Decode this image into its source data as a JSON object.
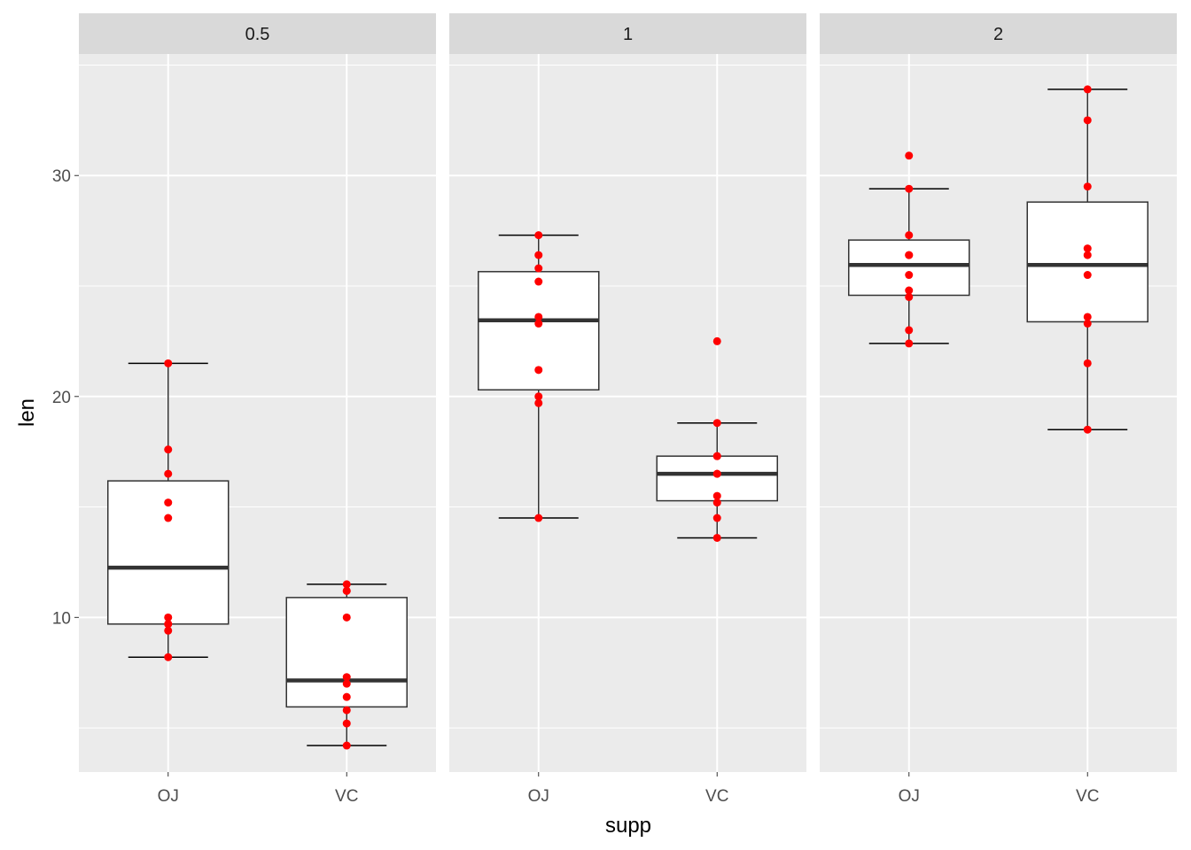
{
  "chart_data": {
    "type": "boxplot",
    "facet_variable": "dose",
    "xlabel": "supp",
    "ylabel": "len",
    "categories": [
      "OJ",
      "VC"
    ],
    "ylim": [
      3.0,
      35.5
    ],
    "y_major_ticks": [
      10,
      20,
      30
    ],
    "y_minor_ticks": [
      5,
      15,
      25,
      35
    ],
    "grid": true,
    "point_color": "#ff0000",
    "panel_background": "#ebebeb",
    "strip_background": "#d9d9d9",
    "panels": [
      {
        "label": "0.5",
        "boxes": [
          {
            "category": "OJ",
            "min": 8.2,
            "q1": 9.7,
            "median": 12.25,
            "q3": 16.18,
            "max": 21.5,
            "points": [
              15.2,
              21.5,
              17.6,
              9.7,
              14.5,
              10.0,
              8.2,
              9.4,
              16.5,
              9.7
            ]
          },
          {
            "category": "VC",
            "min": 4.2,
            "q1": 5.95,
            "median": 7.15,
            "q3": 10.9,
            "max": 11.5,
            "points": [
              4.2,
              11.5,
              7.3,
              5.8,
              6.4,
              10.0,
              11.2,
              11.2,
              5.2,
              7.0
            ]
          }
        ]
      },
      {
        "label": "1",
        "boxes": [
          {
            "category": "OJ",
            "min": 14.5,
            "q1": 20.3,
            "median": 23.45,
            "q3": 25.65,
            "max": 27.3,
            "points": [
              19.7,
              23.3,
              23.6,
              26.4,
              20.0,
              25.2,
              25.8,
              21.2,
              14.5,
              27.3
            ]
          },
          {
            "category": "VC",
            "min": 13.6,
            "q1": 15.28,
            "median": 16.5,
            "q3": 17.3,
            "max": 18.8,
            "points": [
              16.5,
              16.5,
              15.2,
              17.3,
              22.5,
              17.3,
              13.6,
              14.5,
              18.8,
              15.5
            ]
          }
        ]
      },
      {
        "label": "2",
        "boxes": [
          {
            "category": "OJ",
            "min": 22.4,
            "q1": 24.58,
            "median": 25.95,
            "q3": 27.08,
            "max": 29.4,
            "points": [
              25.5,
              26.4,
              22.4,
              24.5,
              24.8,
              30.9,
              26.4,
              27.3,
              29.4,
              23.0
            ]
          },
          {
            "category": "VC",
            "min": 18.5,
            "q1": 23.38,
            "median": 25.95,
            "q3": 28.8,
            "max": 33.9,
            "points": [
              23.6,
              18.5,
              33.9,
              25.5,
              26.4,
              32.5,
              26.7,
              21.5,
              23.3,
              29.5
            ]
          }
        ]
      }
    ]
  }
}
